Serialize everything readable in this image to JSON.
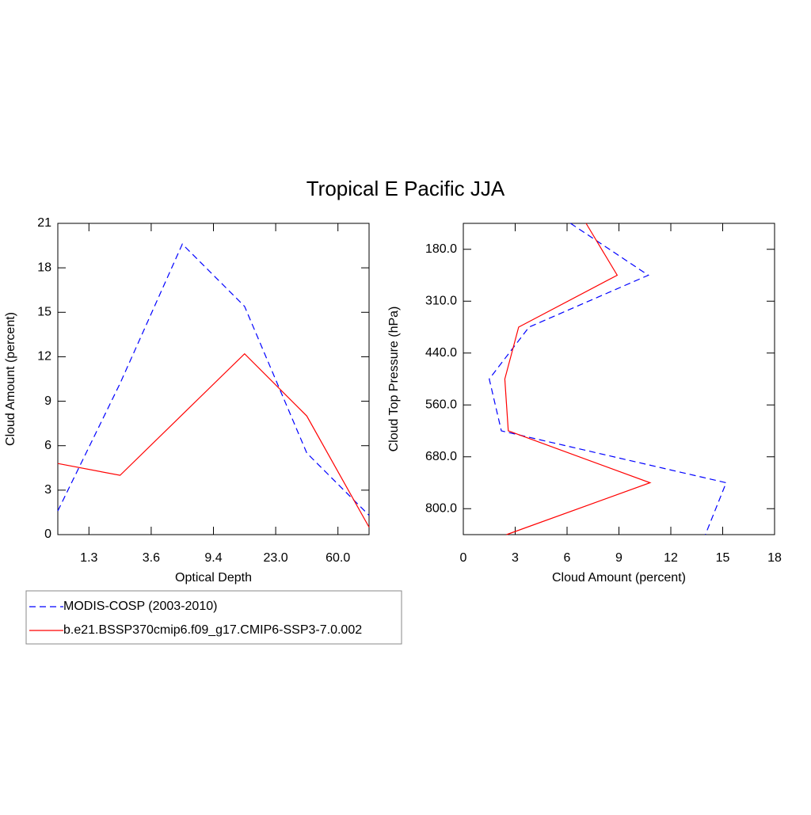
{
  "chart_data": [
    {
      "type": "line",
      "title": "Tropical E Pacific JJA",
      "xlabel": "Optical Depth",
      "ylabel": "Cloud Amount (percent)",
      "x": [
        0,
        1,
        2,
        3,
        4,
        5
      ],
      "xlim": [
        0,
        5
      ],
      "xticks": [
        {
          "value": 0.5,
          "label": "1.3"
        },
        {
          "value": 1.5,
          "label": "3.6"
        },
        {
          "value": 2.5,
          "label": "9.4"
        },
        {
          "value": 3.5,
          "label": "23.0"
        },
        {
          "value": 4.5,
          "label": "60.0"
        }
      ],
      "ylim": [
        0,
        21
      ],
      "yticks": [
        0,
        3,
        6,
        9,
        12,
        15,
        18,
        21
      ],
      "series": [
        {
          "name": "MODIS-COSP (2003-2010)",
          "color": "#0000ff",
          "style": "dashed",
          "values": [
            1.6,
            10.2,
            19.6,
            15.4,
            5.5,
            1.3
          ]
        },
        {
          "name": "b.e21.BSSP370cmip6.f09_g17.CMIP6-SSP3-7.0.002",
          "color": "#ff0000",
          "style": "solid",
          "values": [
            4.8,
            4.0,
            8.1,
            12.2,
            8.0,
            0.5
          ]
        }
      ]
    },
    {
      "type": "line",
      "orientation": "horizontal",
      "xlabel": "Cloud Amount (percent)",
      "ylabel": "Cloud Top Pressure (hPa)",
      "y": [
        0,
        1,
        2,
        3,
        4,
        5,
        6
      ],
      "ylim": [
        6,
        0
      ],
      "yticks": [
        {
          "value": 0.5,
          "label": "180.0"
        },
        {
          "value": 1.5,
          "label": "310.0"
        },
        {
          "value": 2.5,
          "label": "440.0"
        },
        {
          "value": 3.5,
          "label": "560.0"
        },
        {
          "value": 4.5,
          "label": "680.0"
        },
        {
          "value": 5.5,
          "label": "800.0"
        }
      ],
      "xlim": [
        0,
        18
      ],
      "xticks": [
        0,
        3,
        6,
        9,
        12,
        15,
        18
      ],
      "series": [
        {
          "color": "#0000ff",
          "style": "dashed",
          "values": [
            6.2,
            10.7,
            3.8,
            1.5,
            2.2,
            15.2,
            14.0
          ]
        },
        {
          "color": "#ff0000",
          "style": "solid",
          "values": [
            7.1,
            8.9,
            3.2,
            2.4,
            2.6,
            10.8,
            2.5
          ]
        }
      ]
    }
  ]
}
